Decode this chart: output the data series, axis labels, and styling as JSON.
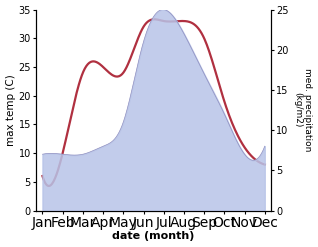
{
  "months": [
    "Jan",
    "Feb",
    "Mar",
    "Apr",
    "May",
    "Jun",
    "Jul",
    "Aug",
    "Sep",
    "Oct",
    "Nov",
    "Dec"
  ],
  "temperature": [
    6,
    10,
    24,
    25,
    24,
    32,
    33,
    33,
    30,
    19,
    11,
    8
  ],
  "precipitation": [
    7,
    7,
    7,
    8,
    11,
    21,
    25,
    22,
    17,
    12,
    7,
    8
  ],
  "temp_color": "#b03040",
  "precip_fill_color": "#b8c4e8",
  "precip_line_color": "#9090c0",
  "temp_ylim": [
    0,
    35
  ],
  "precip_ylim": [
    0,
    25
  ],
  "temp_yticks": [
    0,
    5,
    10,
    15,
    20,
    25,
    30,
    35
  ],
  "precip_yticks": [
    0,
    5,
    10,
    15,
    20,
    25
  ],
  "xlabel": "date (month)",
  "ylabel_left": "max temp (C)",
  "ylabel_right": "med. precipitation\n(kg/m2)",
  "bg_color": "#ffffff",
  "line_width": 1.6
}
